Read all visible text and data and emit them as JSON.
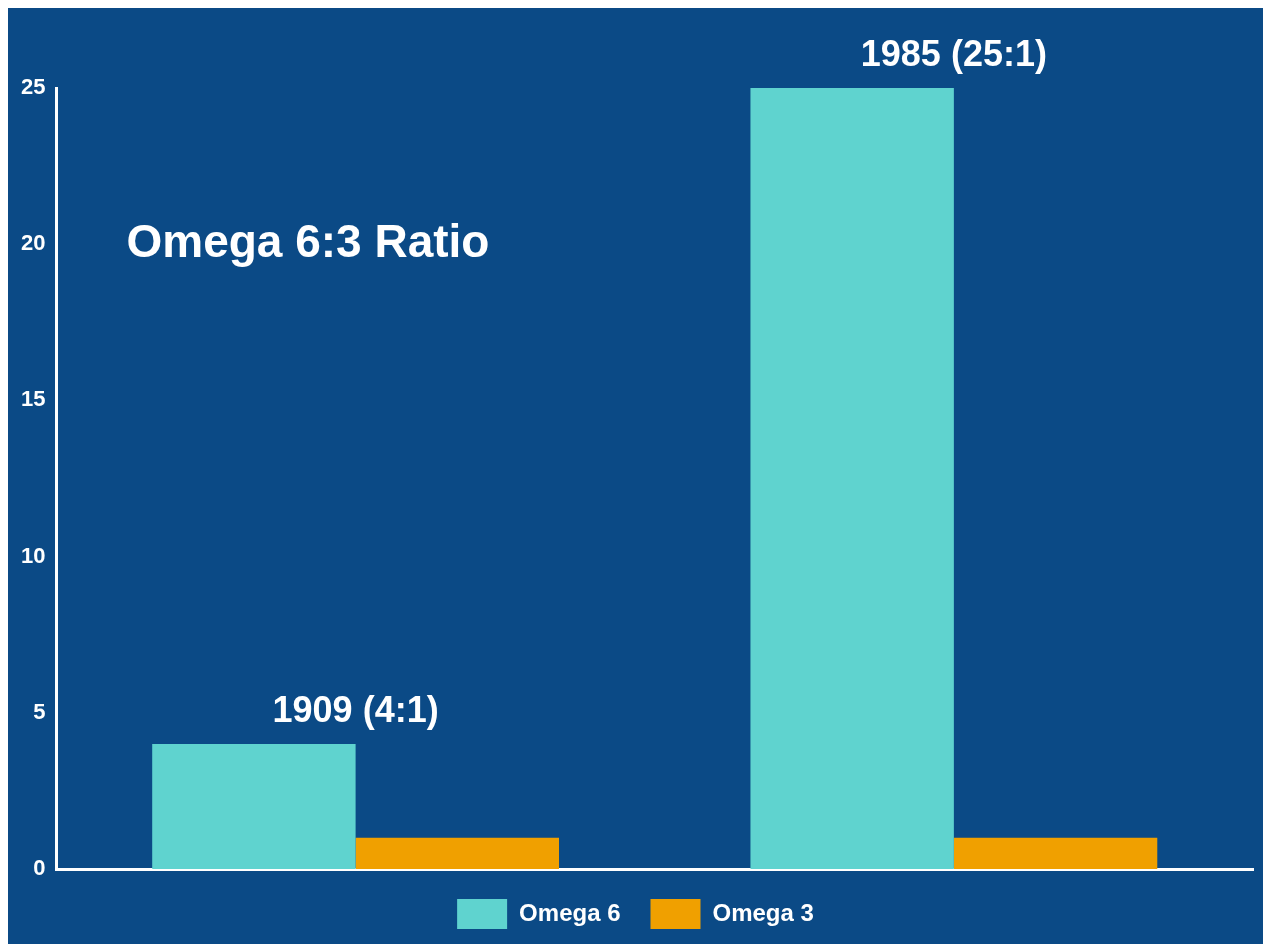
{
  "chart_data": {
    "type": "bar",
    "title": "Omega 6:3 Ratio",
    "categories": [
      "1909 (4:1)",
      "1985 (25:1)"
    ],
    "series": [
      {
        "name": "Omega 6",
        "color": "#5fd3cf",
        "values": [
          4,
          25
        ]
      },
      {
        "name": "Omega 3",
        "color": "#f0a000",
        "values": [
          1,
          1
        ]
      }
    ],
    "ylim": [
      0,
      25
    ],
    "yticks": [
      0,
      5,
      10,
      15,
      20,
      25
    ],
    "grid": false,
    "legend": "bottom"
  }
}
